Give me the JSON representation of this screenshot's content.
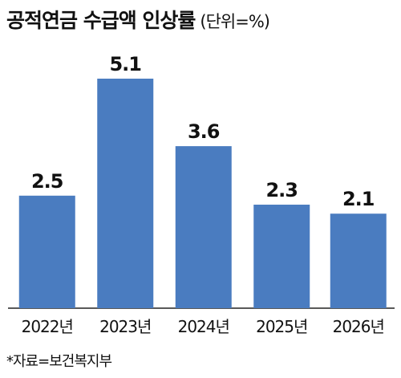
{
  "header": {
    "title": "공적연금 수급액 인상률",
    "unit": "(단위=%)"
  },
  "chart_data": {
    "type": "bar",
    "categories": [
      "2022년",
      "2023년",
      "2024년",
      "2025년",
      "2026년"
    ],
    "values": [
      2.5,
      5.1,
      3.6,
      2.3,
      2.1
    ],
    "value_labels": [
      "2.5",
      "5.1",
      "3.6",
      "2.3",
      "2.1"
    ],
    "ylim": [
      0,
      5.1
    ],
    "grid": false,
    "bar_color": "#4a7cc0"
  },
  "footer": {
    "source": "*자료=보건복지부"
  }
}
